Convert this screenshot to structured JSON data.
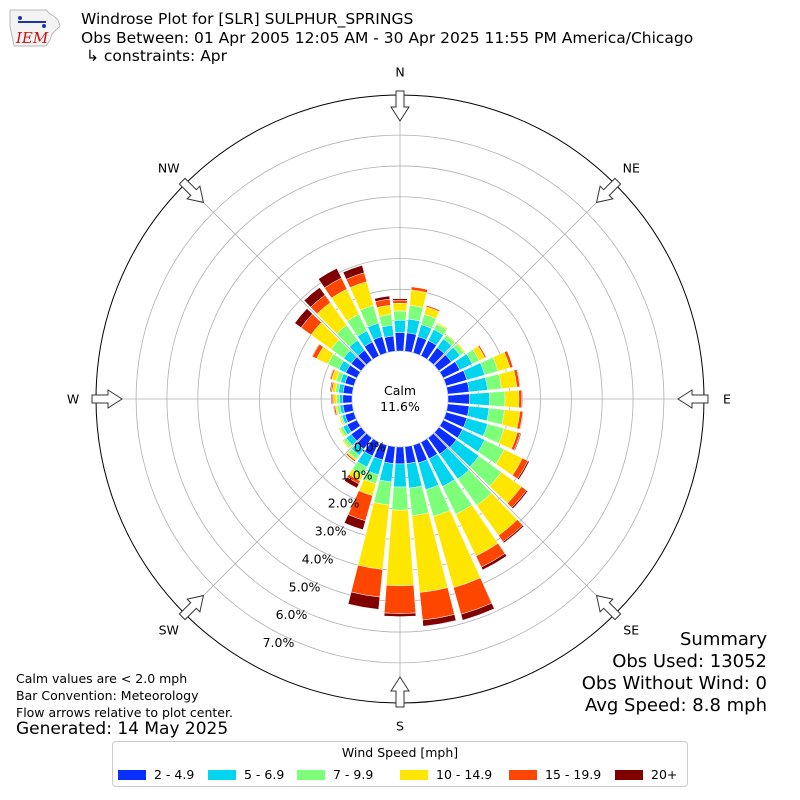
{
  "header": {
    "title": "Windrose Plot for [SLR] SULPHUR_SPRINGS",
    "period": "Obs Between: 01 Apr 2005 12:05 AM - 30 Apr 2025 11:55 PM America/Chicago",
    "constraints": "↳ constraints: Apr",
    "logo_text": "IEM"
  },
  "summary": {
    "heading": "Summary",
    "obs_used": "Obs Used: 13052",
    "obs_without_wind": "Obs Without Wind: 0",
    "avg_speed": "Avg Speed: 8.8 mph"
  },
  "notes": {
    "calm_note": "Calm values are < 2.0 mph",
    "bar_convention": "Bar Convention: Meteorology",
    "flow_arrows": "Flow arrows relative to plot center.",
    "generated": "Generated: 14 May 2025"
  },
  "chart_data": {
    "type": "windrose",
    "calm_label": "Calm",
    "calm_value": "11.6%",
    "legend_title": "Wind Speed [mph]",
    "bins": [
      "2 - 4.9",
      "5 - 6.9",
      "7 - 9.9",
      "10 - 14.9",
      "15 - 19.9",
      "20+"
    ],
    "colors": [
      "#0a2fff",
      "#00d4ee",
      "#7dff7a",
      "#ffe600",
      "#ff4600",
      "#800000"
    ],
    "directions": [
      "N",
      "NE",
      "E",
      "SE",
      "S",
      "SW",
      "W",
      "NW"
    ],
    "radial_ticks": [
      0,
      1,
      2,
      3,
      4,
      5,
      6,
      7
    ],
    "radial_tick_labels": [
      "0.0%",
      "1.0%",
      "2.0%",
      "3.0%",
      "4.0%",
      "5.0%",
      "6.0%",
      "7.0%"
    ],
    "radial_unit": "percent of observations",
    "calm_radius_value": 11.6,
    "rmax_value": 8.3,
    "sectors": [
      {
        "dir": 0,
        "values": [
          0.6,
          0.4,
          0.3,
          0.25,
          0.1,
          0.05
        ]
      },
      {
        "dir": 10,
        "values": [
          0.6,
          0.45,
          0.45,
          0.5,
          0.1,
          0.0
        ]
      },
      {
        "dir": 20,
        "values": [
          0.55,
          0.4,
          0.35,
          0.25,
          0.05,
          0.0
        ]
      },
      {
        "dir": 30,
        "values": [
          0.55,
          0.4,
          0.2,
          0.05,
          0.0,
          0.0
        ]
      },
      {
        "dir": 40,
        "values": [
          0.5,
          0.35,
          0.15,
          0.03,
          0.0,
          0.0
        ]
      },
      {
        "dir": 50,
        "values": [
          0.5,
          0.35,
          0.15,
          0.05,
          0.0,
          0.0
        ]
      },
      {
        "dir": 60,
        "values": [
          0.6,
          0.45,
          0.25,
          0.2,
          0.05,
          0.0
        ]
      },
      {
        "dir": 70,
        "values": [
          0.7,
          0.6,
          0.45,
          0.4,
          0.1,
          0.0
        ]
      },
      {
        "dir": 80,
        "values": [
          0.7,
          0.6,
          0.45,
          0.5,
          0.1,
          0.02
        ]
      },
      {
        "dir": 90,
        "values": [
          0.7,
          0.65,
          0.5,
          0.45,
          0.1,
          0.02
        ]
      },
      {
        "dir": 100,
        "values": [
          0.7,
          0.65,
          0.5,
          0.5,
          0.1,
          0.02
        ]
      },
      {
        "dir": 110,
        "values": [
          0.7,
          0.7,
          0.55,
          0.45,
          0.1,
          0.03
        ]
      },
      {
        "dir": 120,
        "values": [
          0.7,
          0.8,
          0.7,
          0.65,
          0.2,
          0.05
        ]
      },
      {
        "dir": 130,
        "values": [
          0.7,
          0.9,
          0.9,
          0.8,
          0.2,
          0.05
        ]
      },
      {
        "dir": 140,
        "values": [
          0.65,
          1.0,
          1.05,
          1.2,
          0.25,
          0.05
        ]
      },
      {
        "dir": 150,
        "values": [
          0.6,
          1.0,
          1.0,
          1.5,
          0.4,
          0.1
        ]
      },
      {
        "dir": 160,
        "values": [
          0.6,
          0.9,
          0.9,
          2.4,
          0.9,
          0.2
        ]
      },
      {
        "dir": 170,
        "values": [
          0.55,
          0.8,
          0.9,
          2.5,
          0.9,
          0.2
        ]
      },
      {
        "dir": 180,
        "values": [
          0.55,
          0.75,
          0.75,
          2.45,
          0.9,
          0.1
        ]
      },
      {
        "dir": 190,
        "values": [
          0.55,
          0.6,
          0.75,
          2.1,
          0.9,
          0.4
        ]
      },
      {
        "dir": 200,
        "values": [
          0.5,
          0.5,
          0.3,
          0.4,
          0.85,
          0.3
        ]
      },
      {
        "dir": 210,
        "values": [
          0.5,
          0.4,
          0.3,
          0.2,
          0.1,
          0.15
        ]
      },
      {
        "dir": 220,
        "values": [
          0.45,
          0.25,
          0.15,
          0.05,
          0.05,
          0.0
        ]
      },
      {
        "dir": 230,
        "values": [
          0.4,
          0.2,
          0.1,
          0.05,
          0.0,
          0.0
        ]
      },
      {
        "dir": 240,
        "values": [
          0.35,
          0.15,
          0.1,
          0.05,
          0.0,
          0.0
        ]
      },
      {
        "dir": 250,
        "values": [
          0.3,
          0.1,
          0.05,
          0.05,
          0.0,
          0.0
        ]
      },
      {
        "dir": 260,
        "values": [
          0.3,
          0.1,
          0.1,
          0.05,
          0.05,
          0.02
        ]
      },
      {
        "dir": 270,
        "values": [
          0.3,
          0.1,
          0.1,
          0.1,
          0.05,
          0.03
        ]
      },
      {
        "dir": 280,
        "values": [
          0.3,
          0.15,
          0.1,
          0.1,
          0.05,
          0.03
        ]
      },
      {
        "dir": 290,
        "values": [
          0.3,
          0.15,
          0.15,
          0.15,
          0.05,
          0.02
        ]
      },
      {
        "dir": 300,
        "values": [
          0.4,
          0.25,
          0.4,
          0.4,
          0.15,
          0.02
        ]
      },
      {
        "dir": 310,
        "values": [
          0.4,
          0.3,
          0.5,
          0.8,
          0.4,
          0.25
        ]
      },
      {
        "dir": 320,
        "values": [
          0.4,
          0.4,
          0.6,
          0.9,
          0.3,
          0.3
        ]
      },
      {
        "dir": 330,
        "values": [
          0.5,
          0.4,
          0.6,
          0.9,
          0.4,
          0.35
        ]
      },
      {
        "dir": 340,
        "values": [
          0.55,
          0.45,
          0.6,
          0.8,
          0.3,
          0.25
        ]
      },
      {
        "dir": 350,
        "values": [
          0.5,
          0.35,
          0.35,
          0.3,
          0.2,
          0.1
        ]
      }
    ]
  }
}
